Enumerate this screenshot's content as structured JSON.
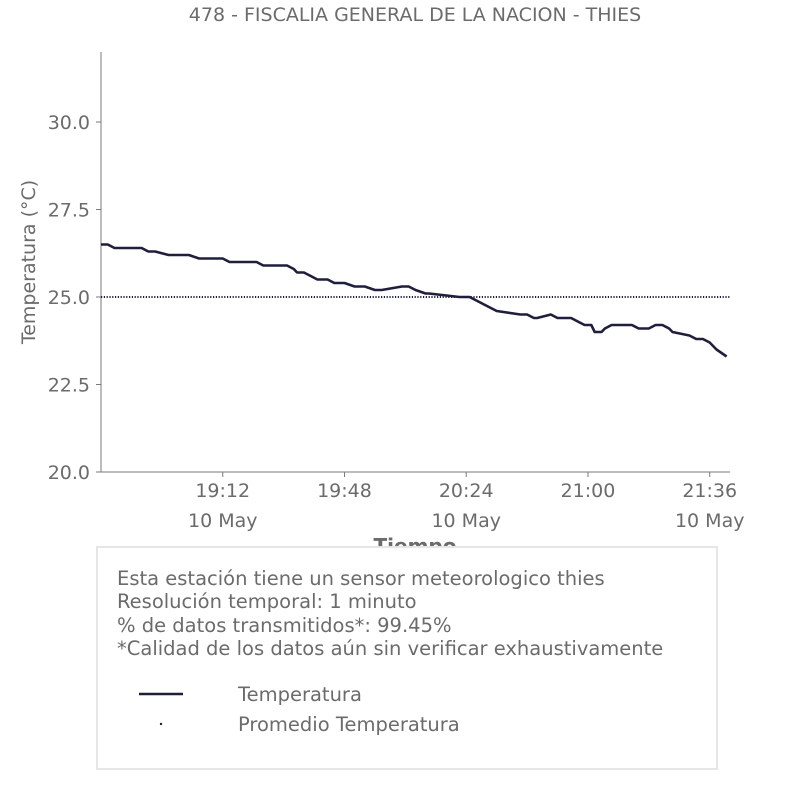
{
  "chart_data": {
    "type": "line",
    "title": "478 - FISCALIA GENERAL DE LA NACION - THIES",
    "xlabel": "Tiempo",
    "ylabel": "Temperatura (°C)",
    "ylim": [
      20.0,
      32.0
    ],
    "xlim": [
      "2024-05-10T18:36",
      "2024-05-10T21:42"
    ],
    "y_ticks": [
      "20.0",
      "22.5",
      "25.0",
      "27.5",
      "30.0"
    ],
    "x_ticks": [
      {
        "x": "2024-05-10T19:12",
        "time": "19:12",
        "date": "10 May"
      },
      {
        "x": "2024-05-10T19:48",
        "time": "19:48",
        "date": ""
      },
      {
        "x": "2024-05-10T20:24",
        "time": "20:24",
        "date": "10 May"
      },
      {
        "x": "2024-05-10T21:00",
        "time": "21:00",
        "date": ""
      },
      {
        "x": "2024-05-10T21:36",
        "time": "21:36",
        "date": "10 May"
      }
    ],
    "grid": false,
    "series": [
      {
        "name": "Temperatura",
        "style": "solid",
        "color": "#1f1f3d",
        "x": [
          "2024-05-10T18:36",
          "2024-05-10T18:38",
          "2024-05-10T18:40",
          "2024-05-10T18:48",
          "2024-05-10T18:50",
          "2024-05-10T18:52",
          "2024-05-10T18:56",
          "2024-05-10T18:57",
          "2024-05-10T19:02",
          "2024-05-10T19:05",
          "2024-05-10T19:06",
          "2024-05-10T19:12",
          "2024-05-10T19:14",
          "2024-05-10T19:22",
          "2024-05-10T19:24",
          "2024-05-10T19:31",
          "2024-05-10T19:33",
          "2024-05-10T19:34",
          "2024-05-10T19:36",
          "2024-05-10T19:38",
          "2024-05-10T19:40",
          "2024-05-10T19:43",
          "2024-05-10T19:45",
          "2024-05-10T19:48",
          "2024-05-10T19:51",
          "2024-05-10T19:54",
          "2024-05-10T19:57",
          "2024-05-10T19:59",
          "2024-05-10T20:05",
          "2024-05-10T20:07",
          "2024-05-10T20:09",
          "2024-05-10T20:12",
          "2024-05-10T20:13",
          "2024-05-10T20:22",
          "2024-05-10T20:25",
          "2024-05-10T20:27",
          "2024-05-10T20:29",
          "2024-05-10T20:31",
          "2024-05-10T20:33",
          "2024-05-10T20:40",
          "2024-05-10T20:42",
          "2024-05-10T20:44",
          "2024-05-10T20:45",
          "2024-05-10T20:49",
          "2024-05-10T20:51",
          "2024-05-10T20:55",
          "2024-05-10T20:57",
          "2024-05-10T20:59",
          "2024-05-10T21:01",
          "2024-05-10T21:02",
          "2024-05-10T21:04",
          "2024-05-10T21:05",
          "2024-05-10T21:07",
          "2024-05-10T21:13",
          "2024-05-10T21:15",
          "2024-05-10T21:18",
          "2024-05-10T21:20",
          "2024-05-10T21:22",
          "2024-05-10T21:24",
          "2024-05-10T21:25",
          "2024-05-10T21:30",
          "2024-05-10T21:32",
          "2024-05-10T21:34",
          "2024-05-10T21:36",
          "2024-05-10T21:38",
          "2024-05-10T21:41"
        ],
        "values": [
          26.5,
          26.5,
          26.4,
          26.4,
          26.3,
          26.3,
          26.2,
          26.2,
          26.2,
          26.1,
          26.1,
          26.1,
          26.0,
          26.0,
          25.9,
          25.9,
          25.8,
          25.7,
          25.7,
          25.6,
          25.5,
          25.5,
          25.4,
          25.4,
          25.3,
          25.3,
          25.2,
          25.2,
          25.3,
          25.3,
          25.2,
          25.1,
          25.1,
          25.0,
          25.0,
          24.9,
          24.8,
          24.7,
          24.6,
          24.5,
          24.5,
          24.4,
          24.4,
          24.5,
          24.4,
          24.4,
          24.3,
          24.2,
          24.2,
          24.0,
          24.0,
          24.1,
          24.2,
          24.2,
          24.1,
          24.1,
          24.2,
          24.2,
          24.1,
          24.0,
          23.9,
          23.8,
          23.8,
          23.7,
          23.5,
          23.3
        ]
      },
      {
        "name": "Promedio Temperatura",
        "style": "dotted",
        "color": "#1f1f3d",
        "x": [
          "2024-05-10T18:36",
          "2024-05-10T21:42"
        ],
        "values": [
          25.0,
          25.0
        ]
      }
    ],
    "legend": {
      "placement": "bottom",
      "entries": [
        "Temperatura",
        "Promedio Temperatura"
      ]
    }
  },
  "info_box": {
    "lines": [
      "Esta estación tiene un sensor meteorologico thies",
      "Resolución temporal: 1 minuto",
      "% de datos transmitidos*: 99.45%",
      "*Calidad de los datos aún sin verificar exhaustivamente"
    ]
  }
}
